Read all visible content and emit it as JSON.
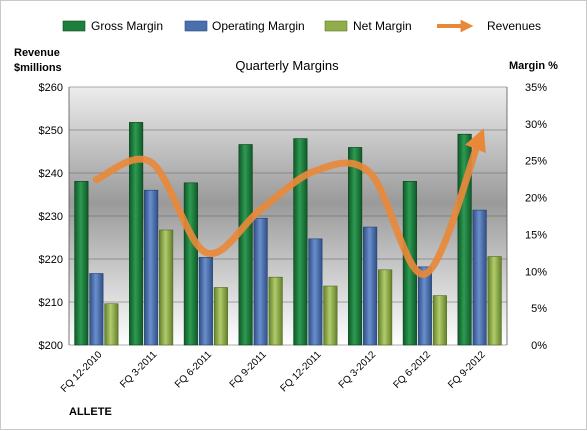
{
  "chart_data": {
    "type": "bar",
    "title": "Quarterly Margins",
    "left_axis_title": [
      "Revenue",
      "$millions"
    ],
    "right_axis_title": "Margin %",
    "brand": "ALLETE",
    "categories": [
      "FQ 12-2010",
      "FQ 3-2011",
      "FQ 6-2011",
      "FQ 9-2011",
      "FQ 12-2011",
      "FQ 3-2012",
      "FQ 6-2012",
      "FQ 9-2012"
    ],
    "left_axis": {
      "min": 200,
      "max": 260,
      "step": 10,
      "tick_labels": [
        "$200",
        "$210",
        "$220",
        "$230",
        "$240",
        "$250",
        "$260"
      ]
    },
    "right_axis": {
      "min": 0,
      "max": 35,
      "step": 5,
      "tick_labels": [
        "0%",
        "5%",
        "10%",
        "15%",
        "20%",
        "25%",
        "30%",
        "35%"
      ]
    },
    "series": [
      {
        "name": "Gross Margin",
        "kind": "bar",
        "axis": "right",
        "values": [
          22.2,
          30.2,
          22.0,
          27.2,
          28.0,
          26.8,
          22.2,
          28.6
        ],
        "color": "#1e7e3c"
      },
      {
        "name": "Operating Margin",
        "kind": "bar",
        "axis": "right",
        "values": [
          9.7,
          21.0,
          11.9,
          17.2,
          14.4,
          16.0,
          10.6,
          18.3
        ],
        "color": "#4a6fae"
      },
      {
        "name": "Net Margin",
        "kind": "bar",
        "axis": "right",
        "values": [
          5.6,
          15.6,
          7.8,
          9.2,
          8.0,
          10.2,
          6.7,
          12.0
        ],
        "color": "#8fad4a"
      },
      {
        "name": "Revenues",
        "kind": "line",
        "axis": "left",
        "values": [
          238.5,
          242.5,
          221.5,
          231.5,
          240.5,
          240.0,
          216.5,
          248.0
        ],
        "color": "#e8893a"
      }
    ],
    "grid": true,
    "legend_position": "top"
  }
}
